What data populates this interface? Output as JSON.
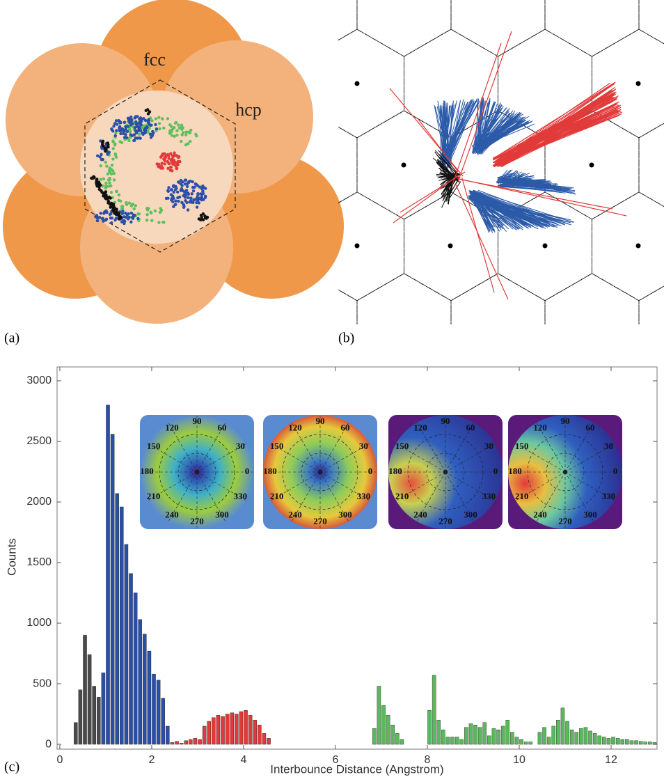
{
  "panel_a": {
    "label": "(a)",
    "labels": [
      "fcc",
      "hcp"
    ]
  },
  "panel_b": {
    "label": "(b)"
  },
  "chart_data": {
    "type": "histogram",
    "panel_label": "(c)",
    "x_label": "Interbounce Distance (Angstrom)",
    "y_label": "Counts",
    "xlim": [
      -0.06,
      13
    ],
    "ylim": [
      -40,
      3115
    ],
    "xticks": [
      0,
      2,
      4,
      6,
      8,
      10,
      12
    ],
    "yticks": [
      0,
      500,
      1000,
      1500,
      2000,
      2500,
      3000
    ],
    "inset_angle_labels": [
      0,
      30,
      60,
      90,
      120,
      150,
      180,
      210,
      240,
      270,
      300,
      330
    ],
    "series": [
      {
        "color": "#4a4a4a",
        "bins": [
          0.3,
          0.4,
          0.5,
          0.6,
          0.7,
          0.8,
          0.9
        ],
        "values": [
          180,
          450,
          900,
          740,
          480,
          390
        ]
      },
      {
        "color": "#2b4fa8",
        "bins": [
          0.9,
          1.0,
          1.1,
          1.2,
          1.3,
          1.4,
          1.5,
          1.6,
          1.7,
          1.8,
          1.9,
          2.0,
          2.1,
          2.2,
          2.3,
          2.4
        ],
        "values": [
          590,
          2800,
          2560,
          2070,
          1960,
          1650,
          1410,
          1250,
          1030,
          910,
          770,
          580,
          530,
          380,
          150
        ]
      },
      {
        "color": "#e23a3a",
        "bins": [
          2.4,
          2.5,
          2.6,
          2.7,
          2.8,
          2.9,
          3.0,
          3.1,
          3.2,
          3.3,
          3.4,
          3.5,
          3.6,
          3.7,
          3.8,
          3.9,
          4.0,
          4.1,
          4.2,
          4.3,
          4.4,
          4.5,
          4.6
        ],
        "values": [
          15,
          25,
          10,
          30,
          40,
          50,
          40,
          150,
          190,
          220,
          240,
          230,
          250,
          260,
          250,
          270,
          280,
          240,
          200,
          160,
          90,
          50
        ]
      },
      {
        "color": "#5cb85c",
        "bins": [
          6.8,
          6.9,
          7.0,
          7.1,
          7.2,
          7.3,
          7.4,
          7.5,
          7.6,
          7.7,
          7.8,
          7.9,
          8.0,
          8.1,
          8.2,
          8.3,
          8.4,
          8.5,
          8.6,
          8.7,
          8.8,
          8.9,
          9.0,
          9.1,
          9.2,
          9.3,
          9.4,
          9.5,
          9.6,
          9.7,
          9.8,
          9.9,
          10.0,
          10.1,
          10.2,
          10.3,
          10.4,
          10.5,
          10.6,
          10.7,
          10.8,
          10.9,
          11.0,
          11.1,
          11.2,
          11.3,
          11.4,
          11.5,
          11.6,
          11.7,
          11.8,
          11.9,
          12.0,
          12.1,
          12.2,
          12.3,
          12.4,
          12.5,
          12.6,
          12.7,
          12.8,
          12.9,
          13.0
        ],
        "values": [
          130,
          480,
          320,
          240,
          160,
          90,
          40,
          0,
          0,
          0,
          0,
          0,
          280,
          570,
          200,
          120,
          60,
          60,
          60,
          40,
          140,
          170,
          160,
          140,
          180,
          70,
          130,
          120,
          150,
          200,
          100,
          60,
          40,
          20,
          20,
          0,
          100,
          140,
          60,
          150,
          200,
          300,
          190,
          120,
          100,
          130,
          140,
          110,
          90,
          70,
          60,
          50,
          60,
          50,
          40,
          40,
          30,
          30,
          25,
          20,
          20,
          15
        ]
      }
    ]
  }
}
